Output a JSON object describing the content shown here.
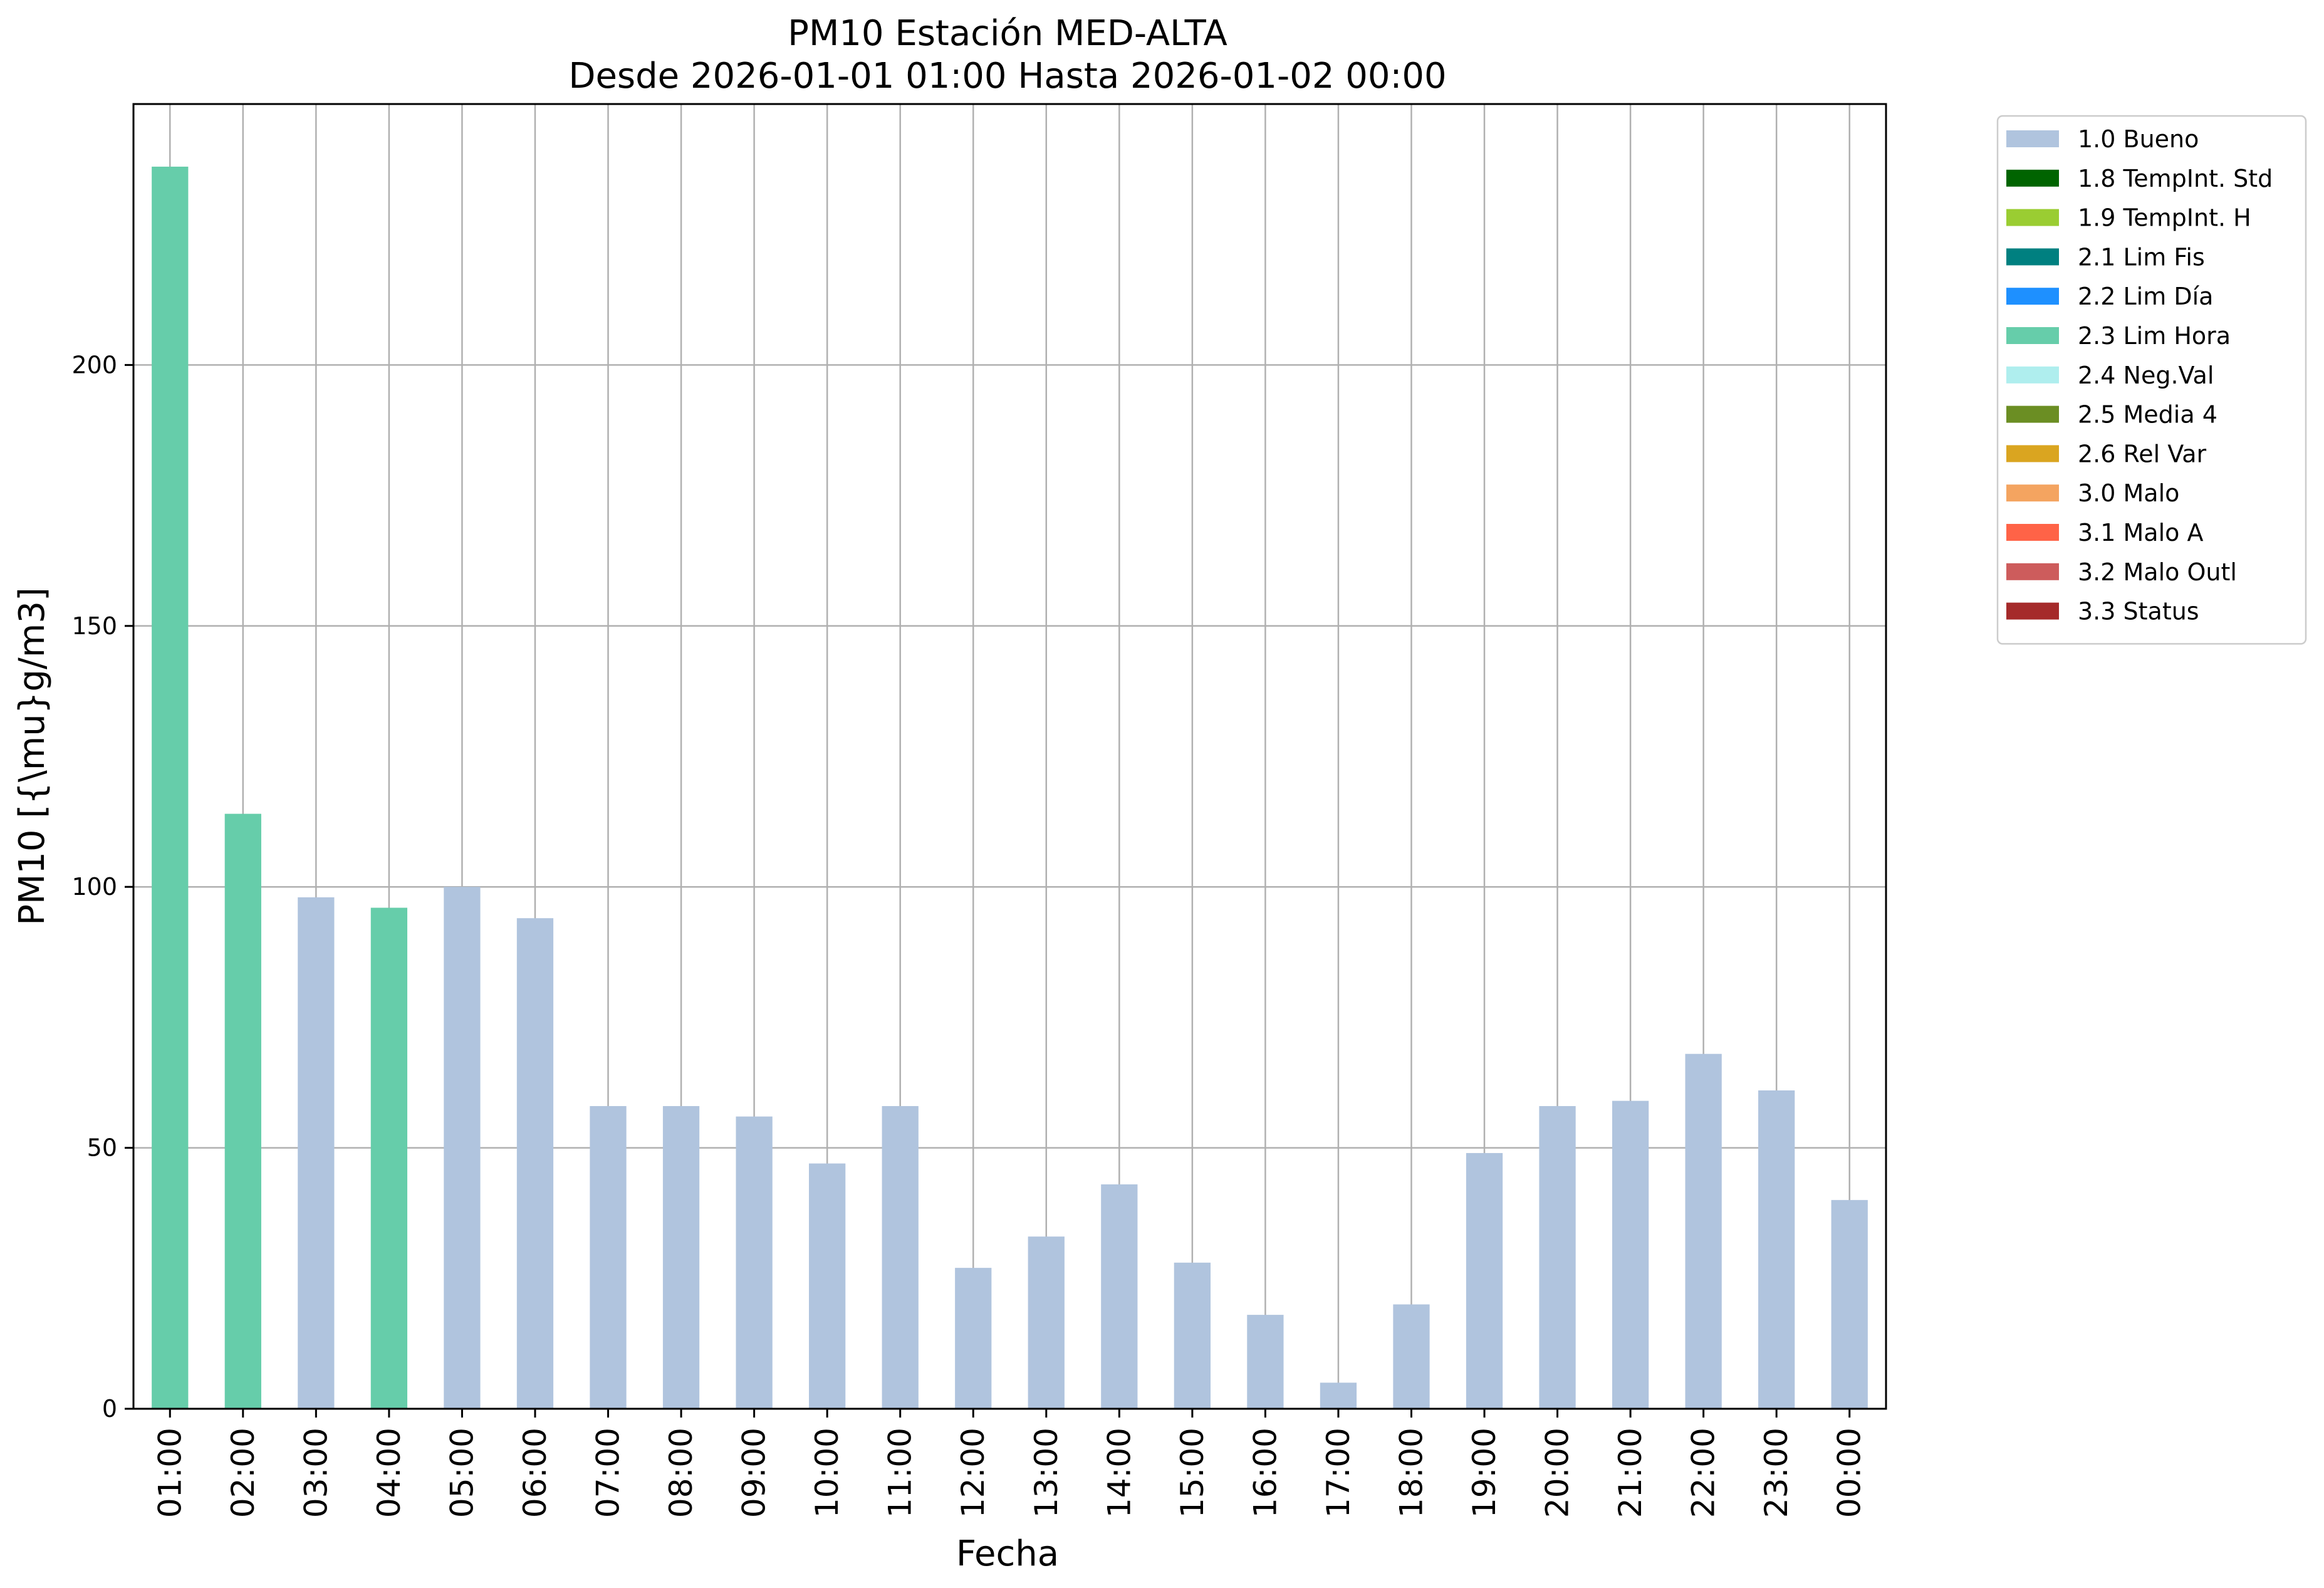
{
  "chart_data": {
    "type": "bar",
    "title": "PM10 Estación MED-ALTA",
    "subtitle": "Desde 2026-01-01 01:00 Hasta 2026-01-02 00:00",
    "xlabel": "Fecha",
    "ylabel": "PM10 [{\\mu}g/m3]",
    "ylim": [
      0,
      250
    ],
    "yticks": [
      0,
      50,
      100,
      150,
      200
    ],
    "grid": true,
    "legend_position": "outside-top-right",
    "categories": [
      "01:00",
      "02:00",
      "03:00",
      "04:00",
      "05:00",
      "06:00",
      "07:00",
      "08:00",
      "09:00",
      "10:00",
      "11:00",
      "12:00",
      "13:00",
      "14:00",
      "15:00",
      "16:00",
      "17:00",
      "18:00",
      "19:00",
      "20:00",
      "21:00",
      "22:00",
      "23:00",
      "00:00"
    ],
    "values": [
      238,
      114,
      98,
      96,
      100,
      94,
      58,
      58,
      56,
      47,
      58,
      27,
      33,
      43,
      28,
      18,
      5,
      20,
      49,
      58,
      59,
      68,
      61,
      40
    ],
    "flags": [
      "2.3 Lim Hora",
      "2.3 Lim Hora",
      "1.0 Bueno",
      "2.3 Lim Hora",
      "1.0 Bueno",
      "1.0 Bueno",
      "1.0 Bueno",
      "1.0 Bueno",
      "1.0 Bueno",
      "1.0 Bueno",
      "1.0 Bueno",
      "1.0 Bueno",
      "1.0 Bueno",
      "1.0 Bueno",
      "1.0 Bueno",
      "1.0 Bueno",
      "1.0 Bueno",
      "1.0 Bueno",
      "1.0 Bueno",
      "1.0 Bueno",
      "1.0 Bueno",
      "1.0 Bueno",
      "1.0 Bueno",
      "1.0 Bueno"
    ],
    "legend": [
      {
        "label": "1.0 Bueno",
        "color": "#b0c4de"
      },
      {
        "label": "1.8 TempInt. Std",
        "color": "#006400"
      },
      {
        "label": "1.9 TempInt. H",
        "color": "#9acd32"
      },
      {
        "label": "2.1 Lim Fis",
        "color": "#008080"
      },
      {
        "label": "2.2 Lim Día",
        "color": "#1e90ff"
      },
      {
        "label": "2.3 Lim Hora",
        "color": "#66cdaa"
      },
      {
        "label": "2.4 Neg.Val",
        "color": "#afeeee"
      },
      {
        "label": "2.5 Media 4",
        "color": "#6b8e23"
      },
      {
        "label": "2.6 Rel Var",
        "color": "#daa520"
      },
      {
        "label": "3.0 Malo",
        "color": "#f4a460"
      },
      {
        "label": "3.1 Malo A",
        "color": "#ff6347"
      },
      {
        "label": "3.2 Malo Outl",
        "color": "#cd5c5c"
      },
      {
        "label": "3.3 Status",
        "color": "#a52a2a"
      }
    ]
  }
}
